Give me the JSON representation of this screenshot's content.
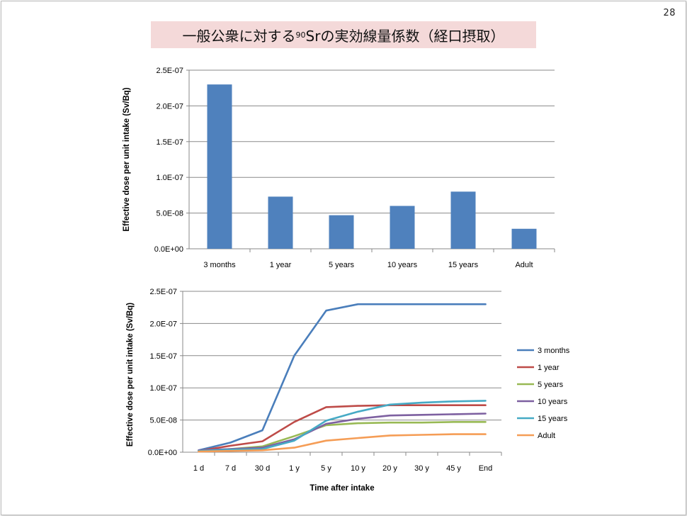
{
  "page_number": "28",
  "title": {
    "before": "一般公衆に対する",
    "superscript": "90",
    "after": "Srの実効線量係数（経口摂取）"
  },
  "colors": {
    "bar": "#4f81bd",
    "grid": "#8a8a8a",
    "title_bg": "#f4d9d9"
  },
  "chart_data": [
    {
      "type": "bar",
      "categories": [
        "3 months",
        "1 year",
        "5 years",
        "10 years",
        "15 years",
        "Adult"
      ],
      "values": [
        2.3e-07,
        7.3e-08,
        4.7e-08,
        6e-08,
        8e-08,
        2.8e-08
      ],
      "yticks": [
        "0.0E+00",
        "5.0E-08",
        "1.0E-07",
        "1.5E-07",
        "2.0E-07",
        "2.5E-07"
      ],
      "ylim": [
        0,
        2.5e-07
      ],
      "ylabel": "Effective dose per unit intake (Sv/Bq)",
      "xlabel": "",
      "grid": true
    },
    {
      "type": "line",
      "categories": [
        "1 d",
        "7 d",
        "30 d",
        "1 y",
        "5 y",
        "10 y",
        "20 y",
        "30 y",
        "45 y",
        "End"
      ],
      "yticks": [
        "0.0E+00",
        "5.0E-08",
        "1.0E-07",
        "1.5E-07",
        "2.0E-07",
        "2.5E-07"
      ],
      "ylim": [
        0,
        2.5e-07
      ],
      "ylabel": "Effective dose per unit intake (Sv/Bq)",
      "xlabel": "Time after intake",
      "legend_position": "right",
      "grid": true,
      "series": [
        {
          "name": "3 months",
          "color": "#4a7ebb",
          "values": [
            3e-09,
            1.5e-08,
            3.4e-08,
            1.5e-07,
            2.2e-07,
            2.3e-07,
            2.3e-07,
            2.3e-07,
            2.3e-07,
            2.3e-07
          ]
        },
        {
          "name": "1 year",
          "color": "#be4b48",
          "values": [
            2e-09,
            1e-08,
            1.7e-08,
            4.7e-08,
            7e-08,
            7.2e-08,
            7.3e-08,
            7.3e-08,
            7.3e-08,
            7.3e-08
          ]
        },
        {
          "name": "5 years",
          "color": "#98b954",
          "values": [
            2e-09,
            5e-09,
            9e-09,
            2.5e-08,
            4.2e-08,
            4.5e-08,
            4.6e-08,
            4.6e-08,
            4.7e-08,
            4.7e-08
          ]
        },
        {
          "name": "10 years",
          "color": "#7d60a0",
          "values": [
            3e-09,
            5e-09,
            7e-09,
            2e-08,
            4.4e-08,
            5.2e-08,
            5.7e-08,
            5.8e-08,
            5.9e-08,
            6e-08
          ]
        },
        {
          "name": "15 years",
          "color": "#46aac5",
          "values": [
            2e-09,
            4e-09,
            5e-09,
            1.8e-08,
            4.9e-08,
            6.3e-08,
            7.4e-08,
            7.7e-08,
            7.9e-08,
            8e-08
          ]
        },
        {
          "name": "Adult",
          "color": "#f59d56",
          "values": [
            1e-09,
            2e-09,
            3e-09,
            7e-09,
            1.8e-08,
            2.2e-08,
            2.6e-08,
            2.7e-08,
            2.8e-08,
            2.8e-08
          ]
        }
      ]
    }
  ]
}
